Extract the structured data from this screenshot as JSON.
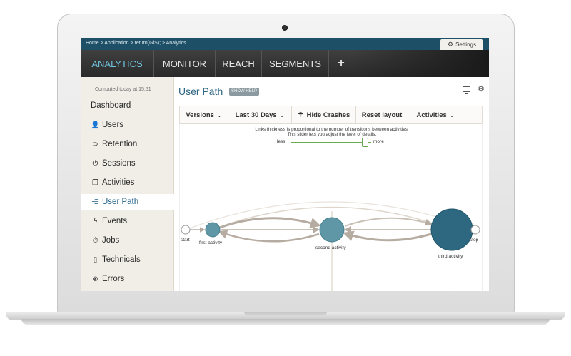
{
  "breadcrumb": "Home > Application > return(GiS); > Analytics",
  "settings_label": "Settings",
  "nav": {
    "items": [
      "ANALYTICS",
      "MONITOR",
      "REACH",
      "SEGMENTS"
    ],
    "plus": "+"
  },
  "sidebar": {
    "computed": "Computed today at 15:51",
    "items": [
      "Dashboard",
      "Users",
      "Retention",
      "Sessions",
      "Activities",
      "User Path",
      "Events",
      "Jobs",
      "Technicals",
      "Errors"
    ],
    "active": "User Path"
  },
  "main": {
    "title": "User Path",
    "show_help": "SHOW HELP"
  },
  "toolbar": {
    "versions": "Versions",
    "range": "Last 30 Days",
    "hide_crashes": "Hide Crashes",
    "reset_layout": "Reset layout",
    "activities": "Activities"
  },
  "graph": {
    "hint_line1": "Links thickness is proportional to the number of transitions between activities.",
    "hint_line2": "This slider lets you adjust the level of details.",
    "slider_less": "less",
    "slider_more": "more",
    "slider_level": 0.88,
    "nodes": {
      "start": "start",
      "first": "first activity",
      "second": "second activity",
      "third": "third activity",
      "stop": "stop"
    }
  },
  "colors": {
    "topbar": "#1d4f67",
    "accent": "#6fc3df",
    "node_small": "#5f97a6",
    "node_big": "#2d6880",
    "link": "#b7aca1",
    "slider": "#6aa84f"
  }
}
